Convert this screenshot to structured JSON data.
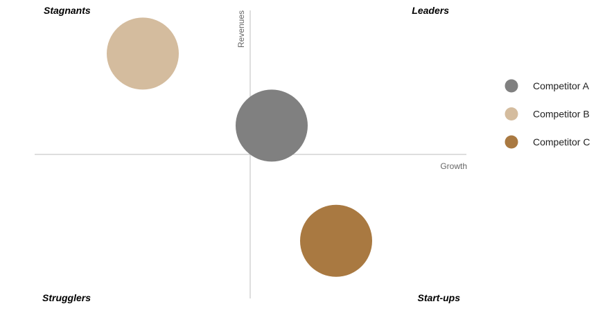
{
  "chart_data": {
    "type": "scatter",
    "subtype": "bubble-quadrant",
    "xlabel": "Growth",
    "ylabel": "Revenues",
    "xlim": [
      -1,
      1
    ],
    "ylim": [
      -1,
      1
    ],
    "grid": false,
    "legend_position": "right",
    "quadrants": {
      "top_left": "Stagnants",
      "top_right": "Leaders",
      "bottom_left": "Strugglers",
      "bottom_right": "Start-ups"
    },
    "series": [
      {
        "name": "Competitor A",
        "x": 0.1,
        "y": 0.2,
        "size": 1,
        "color": "#808080"
      },
      {
        "name": "Competitor B",
        "x": -0.5,
        "y": 0.7,
        "size": 1,
        "color": "#d4bc9e"
      },
      {
        "name": "Competitor C",
        "x": 0.4,
        "y": -0.6,
        "size": 1,
        "color": "#a97941"
      }
    ]
  }
}
